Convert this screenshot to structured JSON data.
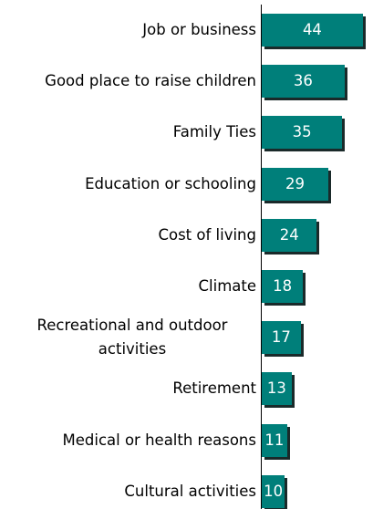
{
  "chart_data": {
    "type": "bar",
    "orientation": "horizontal",
    "categories": [
      "Job or business",
      "Good place to raise children",
      "Family Ties",
      "Education or schooling",
      "Cost of living",
      "Climate",
      "Recreational and outdoor activities",
      "Retirement",
      "Medical or health reasons",
      "Cultural activities"
    ],
    "values": [
      44,
      36,
      35,
      29,
      24,
      18,
      17,
      13,
      11,
      10
    ],
    "color": "#007f7a"
  }
}
